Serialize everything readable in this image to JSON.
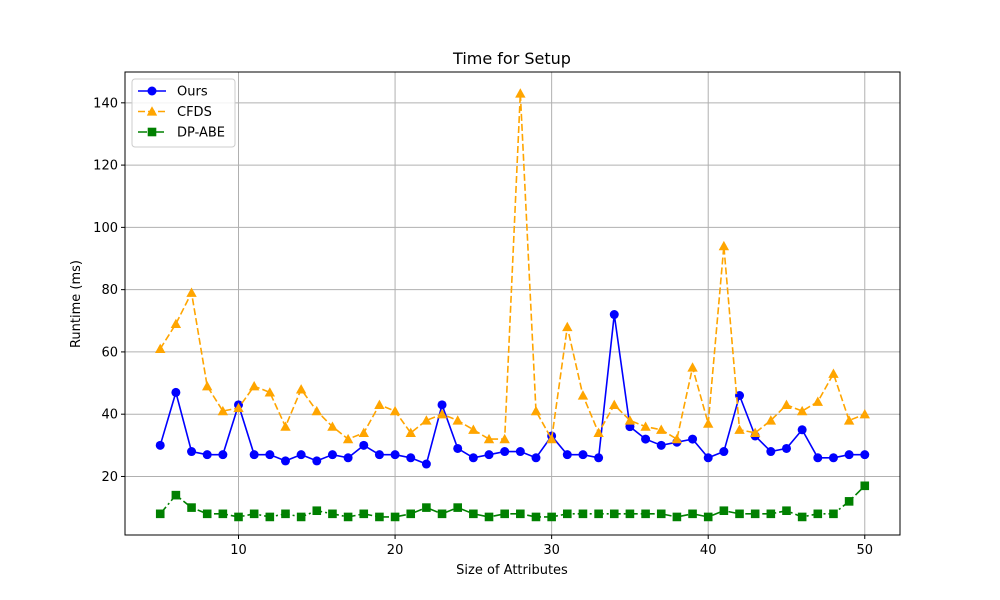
{
  "chart_data": {
    "type": "line",
    "title": "Time for Setup",
    "xlabel": "Size of Attributes",
    "ylabel": "Runtime (ms)",
    "xlim": [
      2.75,
      52.25
    ],
    "ylim": [
      1.2,
      149.9
    ],
    "xticks": [
      10,
      20,
      30,
      40,
      50
    ],
    "yticks": [
      20,
      40,
      60,
      80,
      100,
      120,
      140
    ],
    "grid": true,
    "legend_position": "top-left",
    "x": [
      5,
      6,
      7,
      8,
      9,
      10,
      11,
      12,
      13,
      14,
      15,
      16,
      17,
      18,
      19,
      20,
      21,
      22,
      23,
      24,
      25,
      26,
      27,
      28,
      29,
      30,
      31,
      32,
      33,
      34,
      35,
      36,
      37,
      38,
      39,
      40,
      41,
      42,
      43,
      44,
      45,
      46,
      47,
      48,
      49,
      50
    ],
    "series": [
      {
        "name": "Ours",
        "color": "#0000ff",
        "linestyle": "solid",
        "marker": "circle",
        "values": [
          30,
          47,
          28,
          27,
          27,
          43,
          27,
          27,
          25,
          27,
          25,
          27,
          26,
          30,
          27,
          27,
          26,
          24,
          43,
          29,
          26,
          27,
          28,
          28,
          26,
          33,
          27,
          27,
          26,
          72,
          36,
          32,
          30,
          31,
          32,
          26,
          28,
          46,
          33,
          28,
          29,
          35,
          26,
          26,
          27,
          27
        ]
      },
      {
        "name": "CFDS",
        "color": "#ffa500",
        "linestyle": "dashed",
        "marker": "triangle",
        "values": [
          61,
          69,
          79,
          49,
          41,
          42,
          49,
          47,
          36,
          48,
          41,
          36,
          32,
          34,
          43,
          41,
          34,
          38,
          40,
          38,
          35,
          32,
          32,
          143,
          41,
          32,
          68,
          46,
          34,
          43,
          38,
          36,
          35,
          32,
          55,
          37,
          94,
          35,
          34,
          38,
          43,
          41,
          44,
          53,
          38,
          40
        ]
      },
      {
        "name": "DP-ABE",
        "color": "#008000",
        "linestyle": "dashdot",
        "marker": "square",
        "values": [
          8,
          14,
          10,
          8,
          8,
          7,
          8,
          7,
          8,
          7,
          9,
          8,
          7,
          8,
          7,
          7,
          8,
          10,
          8,
          10,
          8,
          7,
          8,
          8,
          7,
          7,
          8,
          8,
          8,
          8,
          8,
          8,
          8,
          7,
          8,
          7,
          9,
          8,
          8,
          8,
          9,
          7,
          8,
          8,
          12,
          17
        ]
      }
    ]
  }
}
